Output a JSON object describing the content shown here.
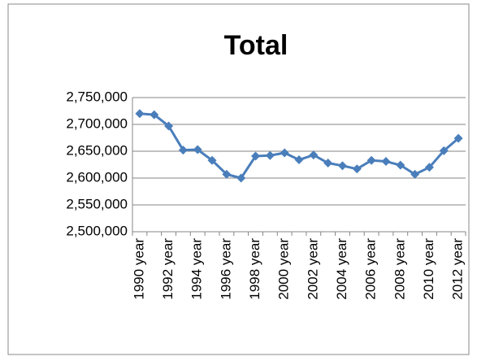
{
  "chart_data": {
    "type": "line",
    "title": "Total",
    "categories": [
      "1990 year",
      null,
      "1992 year",
      null,
      "1994 year",
      null,
      "1996 year",
      null,
      "1998 year",
      null,
      "2000 year",
      null,
      "2002 year",
      null,
      "2004 year",
      null,
      "2006 year",
      null,
      "2008 year",
      null,
      "2010 year",
      null,
      "2012 year"
    ],
    "series": [
      {
        "name": "Total",
        "color": "#4a7ebb",
        "values": [
          2720000,
          2718000,
          2697000,
          2652000,
          2653000,
          2633000,
          2607000,
          2600000,
          2641000,
          2642000,
          2647000,
          2634000,
          2643000,
          2628000,
          2623000,
          2617000,
          2633000,
          2631000,
          2624000,
          2607000,
          2620000,
          2651000,
          2674000
        ]
      }
    ],
    "ylim": [
      2500000,
      2750000
    ],
    "yticks": [
      {
        "value": 2500000,
        "label": "2,500,000"
      },
      {
        "value": 2550000,
        "label": "2,550,000"
      },
      {
        "value": 2600000,
        "label": "2,600,000"
      },
      {
        "value": 2650000,
        "label": "2,650,000"
      },
      {
        "value": 2700000,
        "label": "2,700,000"
      },
      {
        "value": 2750000,
        "label": "2,750,000"
      }
    ],
    "grid": true
  }
}
